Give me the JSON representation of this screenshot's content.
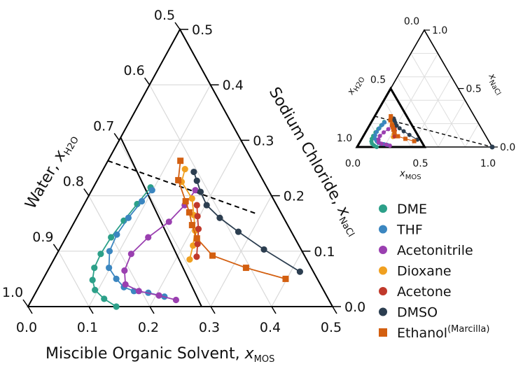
{
  "chart_data": [
    {
      "type": "scatter",
      "subtype": "ternary-zoom",
      "axes": {
        "x": {
          "label": "Miscible Organic Solvent, ",
          "sym": "x",
          "sub": "MOS",
          "range": [
            0,
            0.5
          ],
          "ticks": [
            "0.0",
            "0.1",
            "0.2",
            "0.3",
            "0.4",
            "0.5"
          ]
        },
        "salt": {
          "label": "Sodium Chloride, ",
          "sym": "x",
          "sub": "NaCl",
          "range": [
            0,
            0.5
          ],
          "ticks": [
            "0.0",
            "0.1",
            "0.2",
            "0.3",
            "0.4",
            "0.5"
          ]
        },
        "water": {
          "label": "Water, ",
          "sym": "x",
          "sub": "H2O",
          "range": [
            0.5,
            1.0
          ],
          "ticks": [
            "0.5",
            "0.6",
            "0.7",
            "0.8",
            "0.9",
            "1.0"
          ]
        }
      },
      "grid": true,
      "legend": "right",
      "series": [
        {
          "name": "DME",
          "color": "#2ca089",
          "marker": "circle",
          "points": [
            [
              0.145,
              0.0
            ],
            [
              0.118,
              0.014
            ],
            [
              0.095,
              0.03
            ],
            [
              0.082,
              0.048
            ],
            [
              0.074,
              0.07
            ],
            [
              0.072,
              0.095
            ],
            [
              0.074,
              0.125
            ],
            [
              0.08,
              0.155
            ],
            [
              0.087,
              0.185
            ],
            [
              0.094,
              0.215
            ]
          ]
        },
        {
          "name": "THF",
          "color": "#3b86c0",
          "marker": "circle",
          "points": [
            [
              0.215,
              0.018
            ],
            [
              0.185,
              0.025
            ],
            [
              0.16,
              0.028
            ],
            [
              0.14,
              0.035
            ],
            [
              0.12,
              0.05
            ],
            [
              0.098,
              0.07
            ],
            [
              0.084,
              0.1
            ],
            [
              0.081,
              0.13
            ],
            [
              0.085,
              0.16
            ],
            [
              0.092,
              0.19
            ],
            [
              0.099,
              0.21
            ]
          ]
        },
        {
          "name": "Acetonitrile",
          "color": "#9a3fb0",
          "marker": "circle",
          "points": [
            [
              0.237,
              0.012
            ],
            [
              0.205,
              0.02
            ],
            [
              0.168,
              0.028
            ],
            [
              0.14,
              0.04
            ],
            [
              0.126,
              0.065
            ],
            [
              0.122,
              0.095
            ],
            [
              0.135,
              0.125
            ],
            [
              0.155,
              0.153
            ],
            [
              0.166,
              0.183
            ],
            [
              0.17,
              0.21
            ]
          ]
        },
        {
          "name": "Dioxane",
          "color": "#f0a020",
          "marker": "circle",
          "points": [
            [
              0.223,
              0.085
            ],
            [
              0.216,
              0.11
            ],
            [
              0.206,
              0.137
            ],
            [
              0.19,
              0.165
            ],
            [
              0.172,
              0.195
            ],
            [
              0.14,
              0.225
            ],
            [
              0.134,
              0.248
            ]
          ]
        },
        {
          "name": "Acetone",
          "color": "#c0392b",
          "marker": "circle",
          "points": [
            [
              0.232,
              0.09
            ],
            [
              0.222,
              0.113
            ],
            [
              0.21,
              0.14
            ],
            [
              0.197,
              0.163
            ],
            [
              0.186,
              0.183
            ]
          ]
        },
        {
          "name": "DMSO",
          "color": "#2c3e50",
          "marker": "circle",
          "points": [
            [
              0.415,
              0.063
            ],
            [
              0.336,
              0.103
            ],
            [
              0.278,
              0.135
            ],
            [
              0.235,
              0.16
            ],
            [
              0.202,
              0.183
            ],
            [
              0.18,
              0.207
            ],
            [
              0.164,
              0.227
            ],
            [
              0.151,
              0.243
            ]
          ]
        },
        {
          "name": "Ethanol",
          "name_sup": "(Marcilla)",
          "color": "#d35f10",
          "marker": "square",
          "points": [
            [
              0.398,
              0.05
            ],
            [
              0.323,
              0.07
            ],
            [
              0.257,
              0.092
            ],
            [
              0.216,
              0.123
            ],
            [
              0.196,
              0.147
            ],
            [
              0.18,
              0.17
            ],
            [
              0.164,
              0.19
            ],
            [
              0.133,
              0.228
            ],
            [
              0.119,
              0.263
            ]
          ]
        }
      ],
      "tie_line": {
        "style": "dashed",
        "points": [
          [
            0.119,
            0.263
          ],
          [
            0.0,
            0.5
          ]
        ]
      }
    },
    {
      "type": "scatter",
      "subtype": "ternary-inset",
      "axes": {
        "x": {
          "sym": "x",
          "sub": "MOS",
          "ticks": [
            "0.0",
            "0.5",
            "1.0"
          ]
        },
        "salt": {
          "sym": "x",
          "sub": "NaCl",
          "ticks": [
            "0.0",
            "0.5",
            "1.0"
          ]
        },
        "water": {
          "sym": "x",
          "sub": "H2O",
          "ticks": [
            "0.0",
            "0.5",
            "1.0"
          ]
        }
      },
      "grid": true,
      "highlight_region": "bold triangle x_H2O ≥ 0.5"
    }
  ]
}
